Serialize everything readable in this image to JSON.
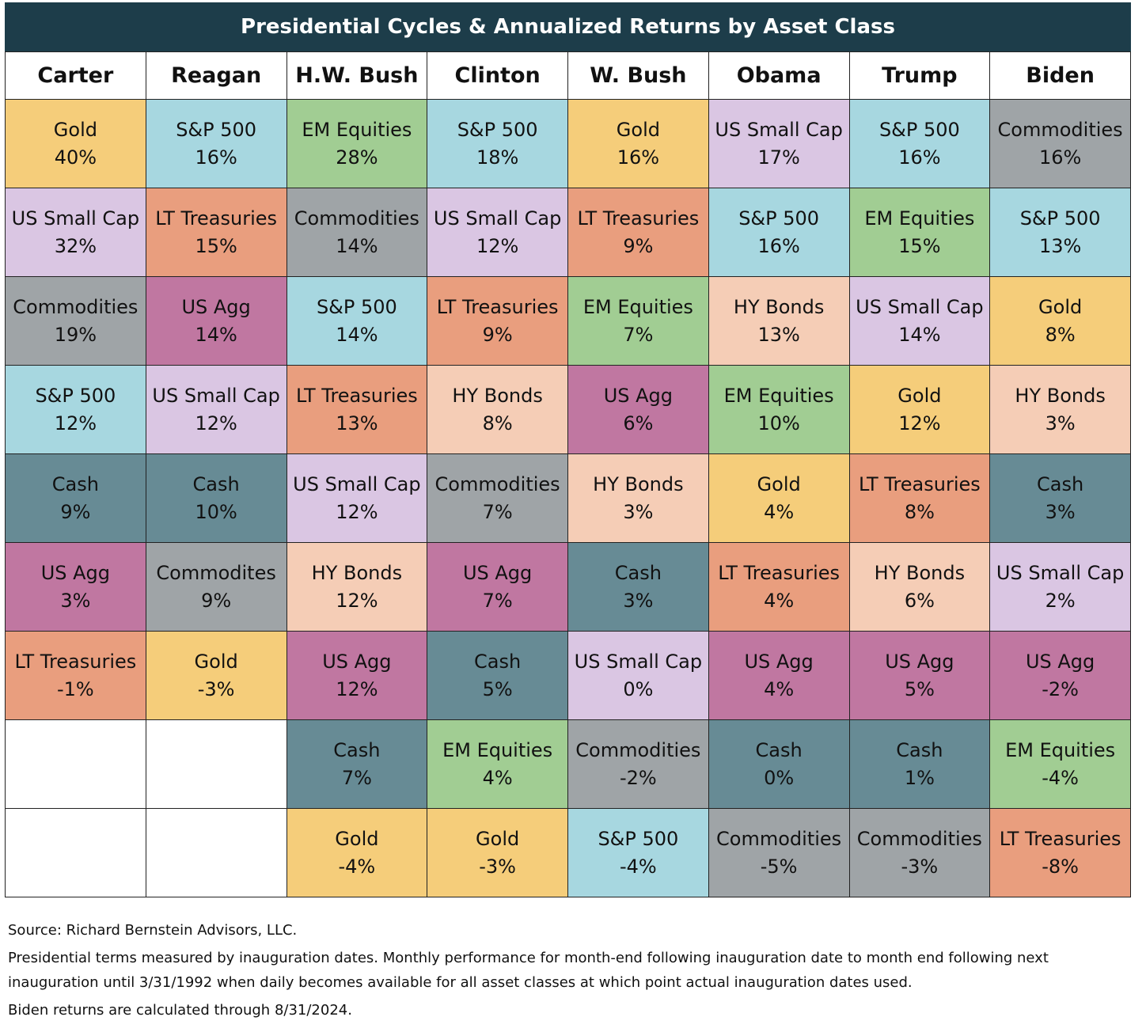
{
  "title": "Presidential Cycles & Annualized Returns by Asset Class",
  "colors": {
    "Gold": "#f5cd7a",
    "S&P 500": "#a7d7e0",
    "EM Equities": "#a1cd93",
    "Commodities": "#9fa4a7",
    "Commodites": "#9fa4a7",
    "US Small Cap": "#dac6e3",
    "LT Treasuries": "#e99e7e",
    "US Agg": "#c077a1",
    "HY Bonds": "#f5cdb6",
    "Cash": "#678b95"
  },
  "chart_data": {
    "type": "table",
    "title": "Presidential Cycles & Annualized Returns by Asset Class",
    "columns": [
      {
        "president": "Carter",
        "rows": [
          {
            "asset": "Gold",
            "value": "40%"
          },
          {
            "asset": "US Small Cap",
            "value": "32%"
          },
          {
            "asset": "Commodities",
            "value": "19%"
          },
          {
            "asset": "S&P 500",
            "value": "12%"
          },
          {
            "asset": "Cash",
            "value": "9%"
          },
          {
            "asset": "US Agg",
            "value": "3%"
          },
          {
            "asset": "LT Treasuries",
            "value": "-1%"
          }
        ]
      },
      {
        "president": "Reagan",
        "rows": [
          {
            "asset": "S&P 500",
            "value": "16%"
          },
          {
            "asset": "LT Treasuries",
            "value": "15%"
          },
          {
            "asset": "US Agg",
            "value": "14%"
          },
          {
            "asset": "US Small Cap",
            "value": "12%"
          },
          {
            "asset": "Cash",
            "value": "10%"
          },
          {
            "asset": "Commodites",
            "value": "9%"
          },
          {
            "asset": "Gold",
            "value": "-3%"
          }
        ]
      },
      {
        "president": "H.W. Bush",
        "rows": [
          {
            "asset": "EM Equities",
            "value": "28%"
          },
          {
            "asset": "Commodities",
            "value": "14%"
          },
          {
            "asset": "S&P 500",
            "value": "14%"
          },
          {
            "asset": "LT Treasuries",
            "value": "13%"
          },
          {
            "asset": "US Small Cap",
            "value": "12%"
          },
          {
            "asset": "HY Bonds",
            "value": "12%"
          },
          {
            "asset": "US Agg",
            "value": "12%"
          },
          {
            "asset": "Cash",
            "value": "7%"
          },
          {
            "asset": "Gold",
            "value": "-4%"
          }
        ]
      },
      {
        "president": "Clinton",
        "rows": [
          {
            "asset": "S&P 500",
            "value": "18%"
          },
          {
            "asset": "US Small Cap",
            "value": "12%"
          },
          {
            "asset": "LT Treasuries",
            "value": "9%"
          },
          {
            "asset": "HY Bonds",
            "value": "8%"
          },
          {
            "asset": "Commodities",
            "value": "7%"
          },
          {
            "asset": "US Agg",
            "value": "7%"
          },
          {
            "asset": "Cash",
            "value": "5%"
          },
          {
            "asset": "EM Equities",
            "value": "4%"
          },
          {
            "asset": "Gold",
            "value": "-3%"
          }
        ]
      },
      {
        "president": "W. Bush",
        "rows": [
          {
            "asset": "Gold",
            "value": "16%"
          },
          {
            "asset": "LT Treasuries",
            "value": "9%"
          },
          {
            "asset": "EM Equities",
            "value": "7%"
          },
          {
            "asset": "US Agg",
            "value": "6%"
          },
          {
            "asset": "HY Bonds",
            "value": "3%"
          },
          {
            "asset": "Cash",
            "value": "3%"
          },
          {
            "asset": "US Small Cap",
            "value": "0%"
          },
          {
            "asset": "Commodities",
            "value": "-2%"
          },
          {
            "asset": "S&P 500",
            "value": "-4%"
          }
        ]
      },
      {
        "president": "Obama",
        "rows": [
          {
            "asset": "US Small Cap",
            "value": "17%"
          },
          {
            "asset": "S&P 500",
            "value": "16%"
          },
          {
            "asset": "HY Bonds",
            "value": "13%"
          },
          {
            "asset": "EM Equities",
            "value": "10%"
          },
          {
            "asset": "Gold",
            "value": "4%"
          },
          {
            "asset": "LT Treasuries",
            "value": "4%"
          },
          {
            "asset": "US Agg",
            "value": "4%"
          },
          {
            "asset": "Cash",
            "value": "0%"
          },
          {
            "asset": "Commodities",
            "value": "-5%"
          }
        ]
      },
      {
        "president": "Trump",
        "rows": [
          {
            "asset": "S&P 500",
            "value": "16%"
          },
          {
            "asset": "EM Equities",
            "value": "15%"
          },
          {
            "asset": "US Small Cap",
            "value": "14%"
          },
          {
            "asset": "Gold",
            "value": "12%"
          },
          {
            "asset": "LT Treasuries",
            "value": "8%"
          },
          {
            "asset": "HY Bonds",
            "value": "6%"
          },
          {
            "asset": "US Agg",
            "value": "5%"
          },
          {
            "asset": "Cash",
            "value": "1%"
          },
          {
            "asset": "Commodities",
            "value": "-3%"
          }
        ]
      },
      {
        "president": "Biden",
        "rows": [
          {
            "asset": "Commodities",
            "value": "16%"
          },
          {
            "asset": "S&P 500",
            "value": "13%"
          },
          {
            "asset": "Gold",
            "value": "8%"
          },
          {
            "asset": "HY Bonds",
            "value": "3%"
          },
          {
            "asset": "Cash",
            "value": "3%"
          },
          {
            "asset": "US Small Cap",
            "value": "2%"
          },
          {
            "asset": "US Agg",
            "value": "-2%"
          },
          {
            "asset": "EM Equities",
            "value": "-4%"
          },
          {
            "asset": "LT Treasuries",
            "value": "-8%"
          }
        ]
      }
    ]
  },
  "notes": {
    "source": "Source: Richard Bernstein Advisors, LLC.",
    "methodology": "Presidential terms measured by inauguration dates. Monthly performance for month-end following inauguration date to month end following next inauguration until 3/31/1992 when daily becomes available for all asset classes at which point actual inauguration dates used.",
    "biden": "Biden returns are calculated through 8/31/2024."
  }
}
